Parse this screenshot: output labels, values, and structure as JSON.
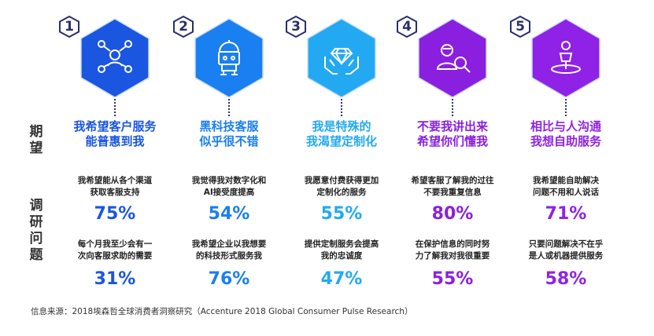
{
  "labels": {
    "expectation": "期望",
    "survey": "调研问题"
  },
  "source": "信息来源：2018埃森哲全球消费者洞察研究（Accenture 2018 Global Consumer Pulse Research）",
  "columns": [
    {
      "number": "1",
      "icon": "network-people-icon",
      "color": "#1a56e0",
      "title_lines": [
        "我希望客户服务",
        "能普惠到我"
      ],
      "q1_lines": [
        "我希望能从各个渠道",
        "获取客服支持"
      ],
      "p1": "75%",
      "q2_lines": [
        "每个月我至少会有一",
        "次向客服求助的需要"
      ],
      "p2": "31%"
    },
    {
      "number": "2",
      "icon": "robot-icon",
      "color": "#1a7ff0",
      "title_lines": [
        "黑科技客服",
        "似乎很不错"
      ],
      "q1_lines": [
        "我觉得我对数字化和",
        "AI接受度提高"
      ],
      "p1": "54%",
      "q2_lines": [
        "我希望企业以我想要",
        "的科技形式服务我"
      ],
      "p2": "76%"
    },
    {
      "number": "3",
      "icon": "diamond-hands-icon",
      "color": "#23a9f2",
      "title_lines": [
        "我是特殊的",
        "我渴望定制化"
      ],
      "q1_lines": [
        "我愿意付费获得更加",
        "定制化的服务"
      ],
      "p1": "55%",
      "q2_lines": [
        "提供定制服务会提高",
        "我的忠诚度"
      ],
      "p2": "47%"
    },
    {
      "number": "4",
      "icon": "person-search-icon",
      "color": "#8a1fe0",
      "title_lines": [
        "不要我讲出来",
        "希望你们懂我"
      ],
      "q1_lines": [
        "希望客服了解我的过往",
        "不要我重复信息"
      ],
      "p1": "80%",
      "q2_lines": [
        "在保护信息的同时努",
        "力了解我对我很重要"
      ],
      "p2": "55%"
    },
    {
      "number": "5",
      "icon": "self-service-icon",
      "color": "#8f22e6",
      "title_lines": [
        "相比与人沟通",
        "我想自助服务"
      ],
      "q1_lines": [
        "我希望能自助解决",
        "问题不用和人说话"
      ],
      "p1": "71%",
      "q2_lines": [
        "只要问题解决不在乎",
        "是人或机器提供服务"
      ],
      "p2": "58%"
    }
  ]
}
